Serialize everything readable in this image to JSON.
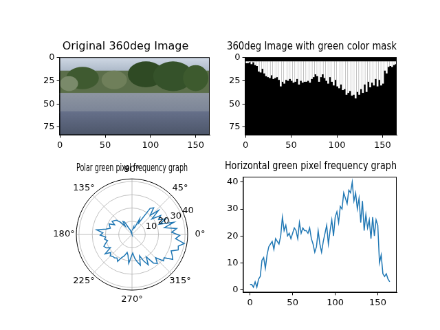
{
  "chart_data": [
    {
      "type": "image",
      "title": "Original 360deg Image",
      "xlim": [
        -0.5,
        165.5
      ],
      "ylim": [
        83.5,
        -0.5
      ],
      "xticks": [
        0,
        50,
        100,
        150
      ],
      "yticks": [
        0,
        25,
        50,
        75
      ]
    },
    {
      "type": "mask",
      "title": "360deg Image with green color mask",
      "xlim": [
        -0.5,
        165.5
      ],
      "ylim": [
        83.5,
        -0.5
      ],
      "xticks": [
        0,
        50,
        100,
        150
      ],
      "yticks": [
        0,
        25,
        50,
        75
      ]
    },
    {
      "type": "polar",
      "title": "Polar green pixel frequency graph",
      "color": "#1f77b4",
      "grid": true,
      "theta": [
        90,
        94.3,
        98.7,
        103,
        107.3,
        111.7,
        116,
        120.4,
        124.7,
        129,
        133.4,
        137.7,
        142,
        146.4,
        150.7,
        155.1,
        159.4,
        163.7,
        168.1,
        172.4,
        176.7,
        181.1,
        185.4,
        189.8,
        194.1,
        198.4,
        202.8,
        207.1,
        211.4,
        215.8,
        220.1,
        224.5,
        228.8,
        233.1,
        237.5,
        241.8,
        246.1,
        250.5,
        254.8,
        259.2,
        263.5,
        267.8,
        272.2,
        276.5,
        280.8,
        285.2,
        289.5,
        293.9,
        298.2,
        302.5,
        306.9,
        311.2,
        315.5,
        319.9,
        324.2,
        328.6,
        332.9,
        337.2,
        341.6,
        345.9,
        350.2,
        354.6,
        358.9,
        3.3,
        7.6,
        11.9,
        16.3,
        20.6,
        24.9,
        29.3,
        33.6,
        38,
        42.3,
        46.6,
        51,
        55.3,
        59.7,
        64,
        68.3,
        72.7,
        77,
        81.3,
        85.7
      ],
      "values": [
        2,
        2,
        1,
        3,
        1,
        4,
        5,
        11,
        12,
        8,
        13,
        16,
        17,
        18,
        15,
        19,
        18,
        17,
        20,
        27,
        22,
        24,
        20,
        21,
        19,
        21,
        23,
        22,
        19,
        25,
        21,
        23,
        22,
        22,
        21,
        23,
        19,
        17,
        14,
        16,
        22,
        17,
        14,
        18,
        21,
        24,
        17,
        22,
        26,
        20,
        27,
        29,
        25,
        31,
        30,
        36,
        34,
        32,
        37,
        36,
        40,
        33,
        36,
        30,
        34,
        25,
        33,
        22,
        28,
        23,
        26,
        19,
        27,
        20,
        26,
        24,
        10,
        13,
        6,
        5,
        6,
        4,
        3
      ],
      "rlim": [
        0,
        42
      ],
      "rticks": [
        10,
        20,
        30,
        40
      ],
      "thetaticks": [
        {
          "value": 0,
          "label": "0°"
        },
        {
          "value": 45,
          "label": "45°"
        },
        {
          "value": 90,
          "label": "90°"
        },
        {
          "value": 135,
          "label": "135°"
        },
        {
          "value": 180,
          "label": "180°"
        },
        {
          "value": 225,
          "label": "225°"
        },
        {
          "value": 270,
          "label": "270°"
        },
        {
          "value": 315,
          "label": "315°"
        }
      ]
    },
    {
      "type": "line",
      "title": "Horizontal green pixel frequency graph",
      "color": "#1f77b4",
      "x": [
        0,
        2,
        4,
        6,
        8,
        10,
        12,
        14,
        16,
        18,
        20,
        22,
        24,
        26,
        28,
        30,
        32,
        34,
        36,
        38,
        40,
        42,
        44,
        46,
        48,
        50,
        52,
        54,
        56,
        58,
        60,
        62,
        64,
        66,
        68,
        70,
        72,
        74,
        76,
        78,
        80,
        82,
        84,
        86,
        88,
        90,
        92,
        94,
        96,
        98,
        100,
        102,
        104,
        106,
        108,
        110,
        112,
        114,
        116,
        118,
        120,
        122,
        124,
        126,
        128,
        130,
        132,
        134,
        136,
        138,
        140,
        142,
        144,
        146,
        148,
        150,
        152,
        154,
        156,
        158,
        160,
        162,
        164
      ],
      "values": [
        2,
        2,
        1,
        3,
        1,
        4,
        5,
        11,
        12,
        8,
        13,
        16,
        17,
        18,
        15,
        19,
        18,
        17,
        20,
        27,
        22,
        24,
        20,
        21,
        19,
        21,
        23,
        22,
        19,
        25,
        21,
        23,
        22,
        22,
        21,
        23,
        19,
        17,
        14,
        16,
        22,
        17,
        14,
        18,
        21,
        24,
        17,
        22,
        26,
        20,
        27,
        29,
        25,
        31,
        30,
        36,
        34,
        32,
        37,
        36,
        40,
        33,
        36,
        30,
        34,
        25,
        33,
        22,
        28,
        23,
        26,
        19,
        27,
        20,
        26,
        24,
        10,
        13,
        6,
        5,
        6,
        4,
        3
      ],
      "xlim": [
        -8.2,
        172.2
      ],
      "ylim": [
        -0.95,
        41.95
      ],
      "xticks": [
        0,
        50,
        100,
        150
      ],
      "yticks": [
        0,
        10,
        20,
        30,
        40
      ]
    }
  ]
}
